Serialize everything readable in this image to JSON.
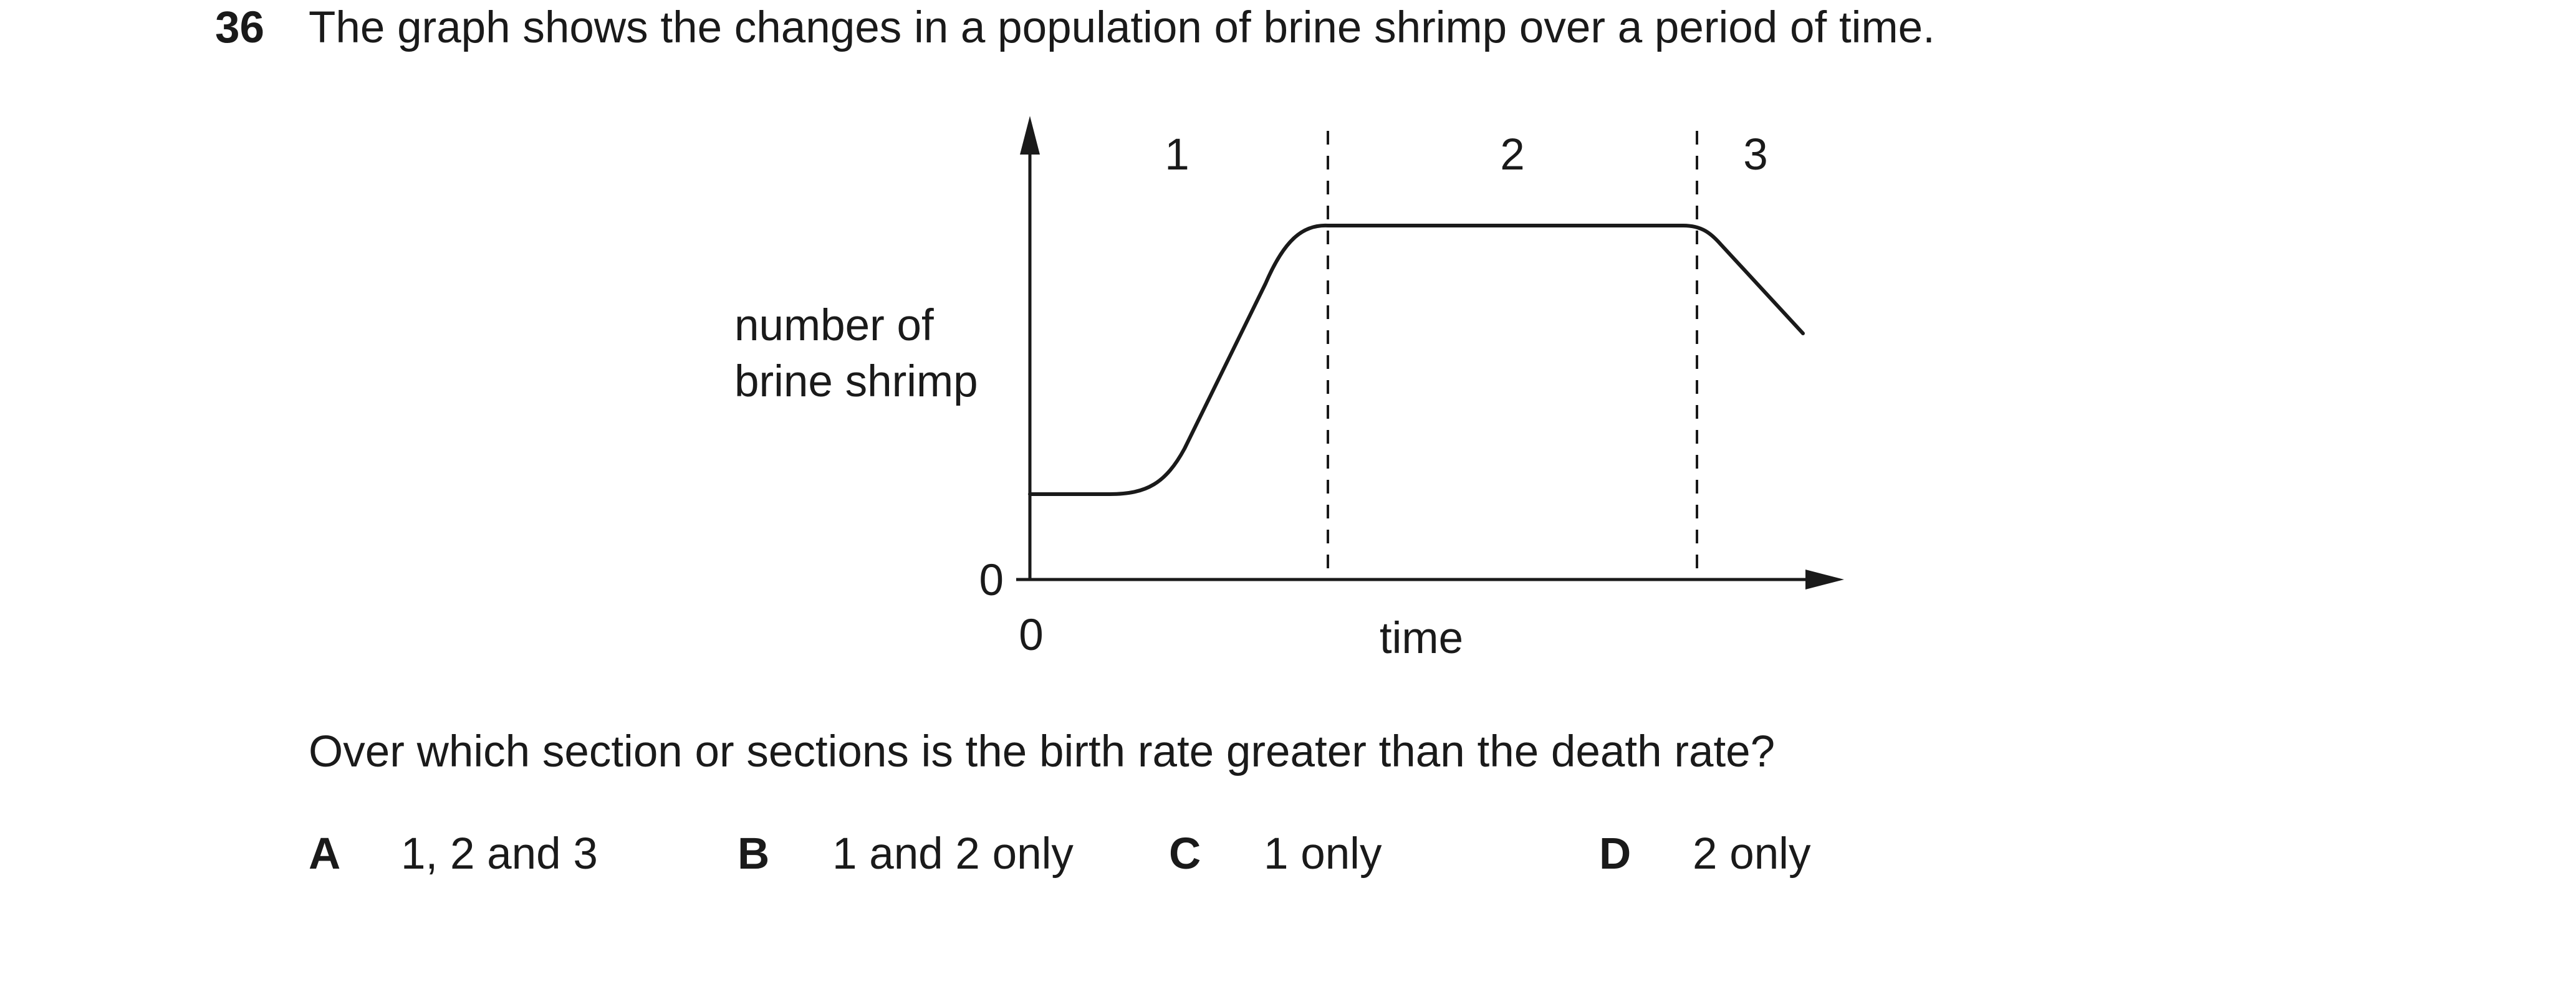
{
  "question": {
    "number": "36",
    "stem": "The graph shows the changes in a population of brine shrimp over a period of time.",
    "prompt": "Over which section or sections is the birth rate greater than the death rate?"
  },
  "options": [
    {
      "letter": "A",
      "text": "1, 2 and 3"
    },
    {
      "letter": "B",
      "text": "1 and 2 only"
    },
    {
      "letter": "C",
      "text": "1 only"
    },
    {
      "letter": "D",
      "text": "2 only"
    }
  ],
  "graph": {
    "ylabel_line1": "number of",
    "ylabel_line2": "brine shrimp",
    "xlabel": "time",
    "y_origin_label": "0",
    "x_origin_label": "0",
    "sections": [
      "1",
      "2",
      "3"
    ]
  }
}
